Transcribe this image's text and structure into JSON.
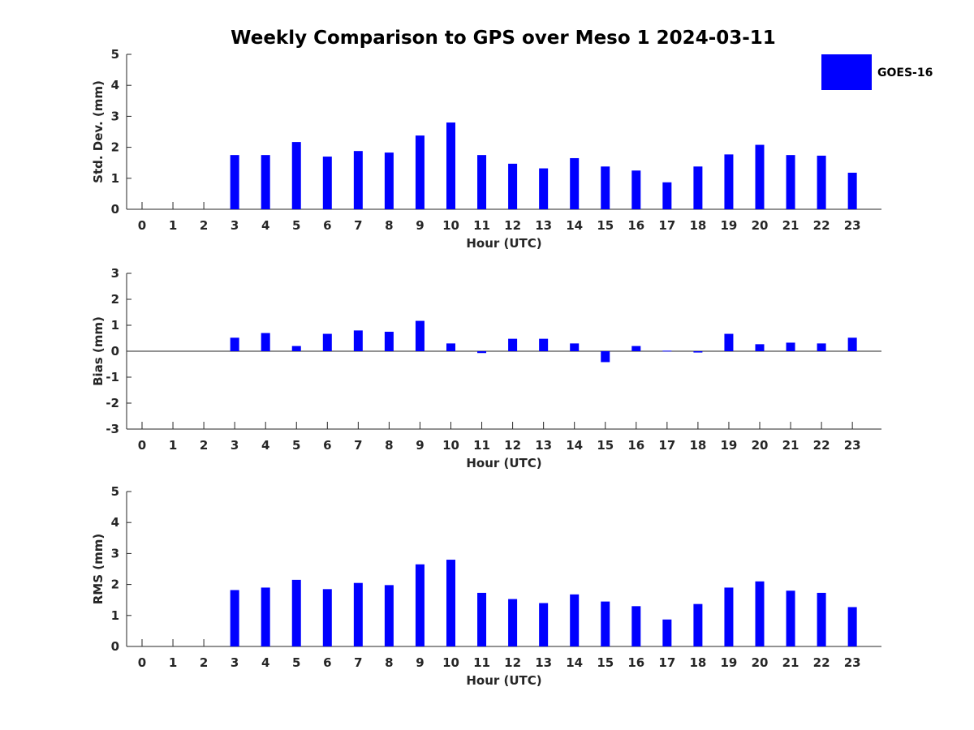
{
  "chart_data": {
    "type": "bar",
    "title": "Weekly Comparison to GPS over Meso 1 2024-03-11",
    "legend": {
      "position": "top-right",
      "entries": [
        {
          "name": "GOES-16",
          "color": "#0000ff"
        }
      ]
    },
    "categories": [
      "0",
      "1",
      "2",
      "3",
      "4",
      "5",
      "6",
      "7",
      "8",
      "9",
      "10",
      "11",
      "12",
      "13",
      "14",
      "15",
      "16",
      "17",
      "18",
      "19",
      "20",
      "21",
      "22",
      "23"
    ],
    "panels": [
      {
        "id": "std",
        "xlabel": "Hour (UTC)",
        "ylabel": "Std. Dev. (mm)",
        "ylim": [
          0,
          5
        ],
        "yticks": [
          "0",
          "1",
          "2",
          "3",
          "4",
          "5"
        ],
        "series": [
          {
            "name": "GOES-16",
            "values": [
              null,
              null,
              null,
              1.75,
              1.75,
              2.17,
              1.7,
              1.88,
              1.83,
              2.38,
              2.8,
              1.75,
              1.47,
              1.32,
              1.65,
              1.38,
              1.25,
              0.87,
              1.38,
              1.77,
              2.08,
              1.75,
              1.73,
              1.18
            ]
          }
        ]
      },
      {
        "id": "bias",
        "xlabel": "Hour (UTC)",
        "ylabel": "Bias (mm)",
        "ylim": [
          -3,
          3
        ],
        "yticks": [
          "-3",
          "-2",
          "-1",
          "0",
          "1",
          "2",
          "3"
        ],
        "series": [
          {
            "name": "GOES-16",
            "values": [
              null,
              null,
              null,
              0.52,
              0.7,
              0.2,
              0.67,
              0.8,
              0.75,
              1.17,
              0.3,
              -0.07,
              0.48,
              0.48,
              0.3,
              -0.42,
              0.2,
              0.02,
              -0.05,
              0.67,
              0.27,
              0.33,
              0.3,
              0.52
            ]
          }
        ]
      },
      {
        "id": "rms",
        "xlabel": "Hour (UTC)",
        "ylabel": "RMS (mm)",
        "ylim": [
          0,
          5
        ],
        "yticks": [
          "0",
          "1",
          "2",
          "3",
          "4",
          "5"
        ],
        "series": [
          {
            "name": "GOES-16",
            "values": [
              null,
              null,
              null,
              1.82,
              1.9,
              2.15,
              1.85,
              2.05,
              1.98,
              2.65,
              2.8,
              1.73,
              1.53,
              1.4,
              1.68,
              1.45,
              1.3,
              0.87,
              1.37,
              1.9,
              2.1,
              1.8,
              1.73,
              1.27
            ]
          }
        ]
      }
    ]
  }
}
